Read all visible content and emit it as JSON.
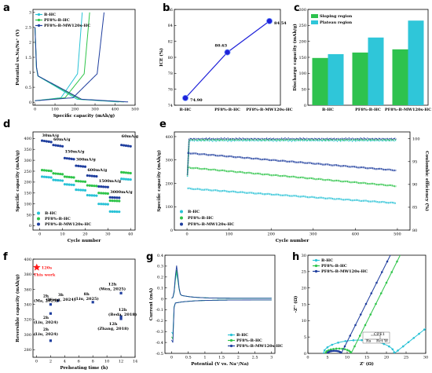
{
  "panels": {
    "a": "a",
    "b": "b",
    "c": "c",
    "d": "d",
    "e": "e",
    "f": "f",
    "g": "g",
    "h": "h"
  },
  "colors": {
    "bhc": "#29c2d6",
    "pf8": "#2fc44a",
    "mw": "#1f3e9e",
    "sloping": "#2ec24e",
    "plateau": "#2fc6d9",
    "ice_line": "#1f22d9",
    "star": "#ff1a1a"
  },
  "chart_data": [
    {
      "id": "a",
      "type": "line",
      "xlabel": "Specific capacity (mAh/g)",
      "ylabel": "Potential vs.Na/Na⁺ (V)",
      "xlim": [
        -10,
        500
      ],
      "ylim": [
        -0.1,
        3.1
      ],
      "xticks": [
        0,
        100,
        200,
        300,
        400,
        500
      ],
      "yticks": [
        0.0,
        0.5,
        1.0,
        1.5,
        2.0,
        2.5,
        3.0
      ],
      "legend": "top-left",
      "series": [
        {
          "name": "B-HC",
          "discharge_capacity": 420,
          "charge_capacity": 236,
          "color_key": "bhc"
        },
        {
          "name": "PF8%-B-HC",
          "discharge_capacity": 445,
          "charge_capacity": 273,
          "color_key": "pf8"
        },
        {
          "name": "PF8%-B-MW120s-HC",
          "discharge_capacity": 465,
          "charge_capacity": 345,
          "color_key": "mw"
        }
      ]
    },
    {
      "id": "b",
      "type": "line",
      "xlabel": "",
      "ylabel": "ICE (%)",
      "ylim": [
        74,
        86
      ],
      "yticks": [
        74,
        76,
        78,
        80,
        82,
        84,
        86
      ],
      "categories": [
        "B-HC",
        "PF8%-B-HC",
        "PF8%-B-MW120s-HC"
      ],
      "values": [
        74.9,
        80.63,
        84.54
      ],
      "labels": [
        "74.90",
        "80.63",
        "84.54"
      ]
    },
    {
      "id": "c",
      "type": "bar",
      "xlabel": "",
      "ylabel": "Discharge capacity (mAh/g)",
      "ylim": [
        0,
        300
      ],
      "yticks": [
        0,
        50,
        100,
        150,
        200,
        250,
        300
      ],
      "categories": [
        "B-HC",
        "PF8%-B-HC",
        "PF8%-B-MW120s-HC"
      ],
      "legend": "top-left",
      "series": [
        {
          "name": "Sloping region",
          "values": [
            148,
            165,
            175
          ],
          "color_key": "sloping"
        },
        {
          "name": "Plateau region",
          "values": [
            160,
            212,
            265
          ],
          "color_key": "plateau"
        }
      ]
    },
    {
      "id": "d",
      "type": "scatter",
      "xlabel": "Cycle number",
      "ylabel": "Specific capacity (mAh/g)",
      "xlim": [
        -3,
        42
      ],
      "ylim": [
        -20,
        430
      ],
      "xticks": [
        0,
        10,
        20,
        30,
        40
      ],
      "yticks": [
        0,
        50,
        100,
        150,
        200,
        250,
        300,
        350,
        400
      ],
      "legend": "bottom-left",
      "annotations": [
        "30mA/g",
        "60mA/g",
        "150mA/g",
        "300mA/g",
        "600mA/g",
        "1500mA/g",
        "3000mA/g",
        "60mA/g"
      ],
      "steps": [
        {
          "rate": "30mA/g",
          "start": 1,
          "end": 5,
          "values": [
            225,
            255,
            390
          ]
        },
        {
          "rate": "60mA/g",
          "start": 6,
          "end": 10,
          "values": [
            210,
            240,
            370
          ]
        },
        {
          "rate": "150mA/g",
          "start": 11,
          "end": 15,
          "values": [
            190,
            225,
            310
          ]
        },
        {
          "rate": "300mA/g",
          "start": 16,
          "end": 20,
          "values": [
            165,
            205,
            275
          ]
        },
        {
          "rate": "600mA/g",
          "start": 21,
          "end": 25,
          "values": [
            140,
            185,
            230
          ]
        },
        {
          "rate": "1500mA/g",
          "start": 26,
          "end": 30,
          "values": [
            100,
            150,
            180
          ]
        },
        {
          "rate": "3000mA/g",
          "start": 31,
          "end": 35,
          "values": [
            65,
            115,
            130
          ]
        },
        {
          "rate": "60mA/g",
          "start": 36,
          "end": 40,
          "values": [
            215,
            245,
            370
          ]
        }
      ],
      "series": [
        {
          "name": "B-HC",
          "color_key": "bhc"
        },
        {
          "name": "PF8%-B-HC",
          "color_key": "pf8"
        },
        {
          "name": "PF8%-B-MW120s-HC",
          "color_key": "mw"
        }
      ]
    },
    {
      "id": "e",
      "type": "line",
      "xlabel": "Cycle number",
      "ylabel": "Specific capacity (mAh/g)",
      "y2label": "Coulombic efficiency (%)",
      "xlim": [
        -30,
        530
      ],
      "ylim": [
        0,
        420
      ],
      "y2lim": [
        80,
        101.5
      ],
      "xticks": [
        0,
        100,
        200,
        300,
        400,
        500
      ],
      "yticks": [
        0,
        100,
        200,
        300,
        400
      ],
      "y2ticks": [
        80,
        85,
        90,
        95,
        100
      ],
      "legend": "bottom-left",
      "series": [
        {
          "name": "B-HC",
          "capacity_start": 178,
          "capacity_end": 115,
          "ce": 99.6,
          "color_key": "bhc"
        },
        {
          "name": "PF8%-B-HC",
          "capacity_start": 268,
          "capacity_end": 188,
          "ce": 99.8,
          "color_key": "pf8"
        },
        {
          "name": "PF8%-B-MW120s-HC",
          "capacity_start": 330,
          "capacity_end": 255,
          "ce": 100.0,
          "color_key": "mw"
        }
      ]
    },
    {
      "id": "f",
      "type": "scatter",
      "xlabel": "Preheating time (h)",
      "ylabel": "Reversible capacity (mAh/g)",
      "xlim": [
        -0.5,
        14
      ],
      "ylim": [
        270,
        400
      ],
      "xticks": [
        0,
        2,
        4,
        6,
        8,
        10,
        12,
        14
      ],
      "yticks": [
        280,
        300,
        320,
        340,
        360,
        380,
        400
      ],
      "highlight": {
        "x": 0.033,
        "y": 389,
        "label": "120s",
        "sublabel": "This work"
      },
      "points": [
        {
          "x": 3,
          "y": 345,
          "label": "3h\n(Wang, 2024)"
        },
        {
          "x": 8,
          "y": 343,
          "label": "8h\n(Liu, 2025)"
        },
        {
          "x": 12,
          "y": 355,
          "label": "12h\n(Wen, 2025)"
        },
        {
          "x": 2,
          "y": 340,
          "label": "2h\n(Ma, 2025)"
        },
        {
          "x": 2,
          "y": 328,
          "label": "2h\n(Liu, 2024)"
        },
        {
          "x": 2,
          "y": 292,
          "label": "2h\n(Liu, 2024)"
        },
        {
          "x": 12,
          "y": 324,
          "label": "12h\n(Beda, 2018)"
        },
        {
          "x": 12,
          "y": 321,
          "label": "12h\n(Zhang, 2018)"
        }
      ]
    },
    {
      "id": "g",
      "type": "line",
      "xlabel": "Potential (V vs. Na⁺/Na)",
      "ylabel": "Current (mA)",
      "xlim": [
        -0.2,
        3.1
      ],
      "ylim": [
        -0.5,
        0.4
      ],
      "xticks": [
        0.0,
        0.5,
        1.0,
        1.5,
        2.0,
        2.5,
        3.0
      ],
      "yticks": [
        -0.5,
        -0.4,
        -0.3,
        -0.2,
        -0.1,
        0.0,
        0.1,
        0.2,
        0.3,
        0.4
      ],
      "legend": "bottom-right",
      "series": [
        {
          "name": "B-HC",
          "peak_ox": 0.24,
          "peak_red": -0.36,
          "color_key": "bhc"
        },
        {
          "name": "PF8%-B-HC",
          "peak_ox": 0.26,
          "peak_red": -0.42,
          "color_key": "pf8"
        },
        {
          "name": "PF8%-B-MW120s-HC",
          "peak_ox": 0.3,
          "peak_red": -0.46,
          "color_key": "mw"
        }
      ]
    },
    {
      "id": "h",
      "type": "line",
      "xlabel": "Z' (Ω)",
      "ylabel": "-Z'' (Ω)",
      "xlim": [
        0,
        30
      ],
      "ylim": [
        0,
        30
      ],
      "xticks": [
        0,
        5,
        10,
        15,
        20,
        25,
        30
      ],
      "yticks": [
        0,
        5,
        10,
        15,
        20,
        25,
        30
      ],
      "legend": "top-left",
      "inset": [
        "CPE1",
        "Rs",
        "Rct",
        "W"
      ],
      "series": [
        {
          "name": "B-HC",
          "rs": 4.0,
          "rct": 18,
          "color_key": "bhc"
        },
        {
          "name": "PF8%-B-HC",
          "rs": 4.5,
          "rct": 6.5,
          "color_key": "pf8"
        },
        {
          "name": "PF8%-B-MW120s-HC",
          "rs": 5.0,
          "rct": 3.5,
          "color_key": "mw"
        }
      ]
    }
  ]
}
